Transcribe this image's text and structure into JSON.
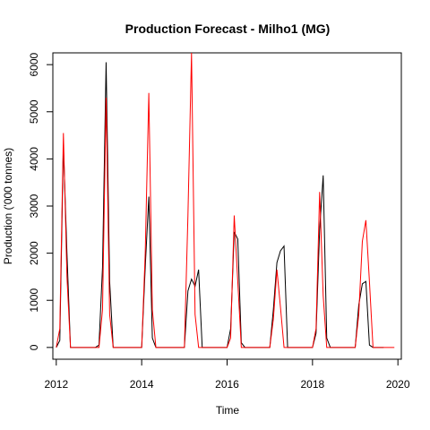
{
  "chart_data": {
    "type": "line",
    "title": "Production Forecast - Milho1 (MG)",
    "xlabel": "Time",
    "ylabel": "Production ('000 tonnes)",
    "xlim": [
      2011.92,
      2020.08
    ],
    "ylim": [
      -250,
      6250
    ],
    "x_ticks": [
      2012,
      2014,
      2016,
      2018,
      2020
    ],
    "y_ticks": [
      0,
      1000,
      2000,
      3000,
      4000,
      5000,
      6000
    ],
    "grid": false,
    "legend": "none",
    "series": [
      {
        "color": "#000000",
        "points": [
          [
            2012.0,
            0
          ],
          [
            2012.083,
            150
          ],
          [
            2012.167,
            4300
          ],
          [
            2012.25,
            2000
          ],
          [
            2012.333,
            0
          ],
          [
            2012.417,
            0
          ],
          [
            2012.5,
            0
          ],
          [
            2012.583,
            0
          ],
          [
            2012.667,
            0
          ],
          [
            2012.75,
            0
          ],
          [
            2012.833,
            0
          ],
          [
            2012.917,
            0
          ],
          [
            2013.0,
            50
          ],
          [
            2013.083,
            1700
          ],
          [
            2013.167,
            6050
          ],
          [
            2013.25,
            1400
          ],
          [
            2013.333,
            0
          ],
          [
            2013.417,
            0
          ],
          [
            2013.5,
            0
          ],
          [
            2013.583,
            0
          ],
          [
            2013.667,
            0
          ],
          [
            2013.75,
            0
          ],
          [
            2013.833,
            0
          ],
          [
            2013.917,
            0
          ],
          [
            2014.0,
            0
          ],
          [
            2014.083,
            1700
          ],
          [
            2014.167,
            3200
          ],
          [
            2014.25,
            200
          ],
          [
            2014.333,
            0
          ],
          [
            2014.417,
            0
          ],
          [
            2014.5,
            0
          ],
          [
            2014.583,
            0
          ],
          [
            2014.667,
            0
          ],
          [
            2014.75,
            0
          ],
          [
            2014.833,
            0
          ],
          [
            2014.917,
            0
          ],
          [
            2015.0,
            0
          ],
          [
            2015.083,
            1200
          ],
          [
            2015.167,
            1450
          ],
          [
            2015.25,
            1300
          ],
          [
            2015.333,
            1650
          ],
          [
            2015.417,
            0
          ],
          [
            2015.5,
            0
          ],
          [
            2015.583,
            0
          ],
          [
            2015.667,
            0
          ],
          [
            2015.75,
            0
          ],
          [
            2015.833,
            0
          ],
          [
            2015.917,
            0
          ],
          [
            2016.0,
            0
          ],
          [
            2016.083,
            400
          ],
          [
            2016.167,
            2450
          ],
          [
            2016.25,
            2300
          ],
          [
            2016.333,
            100
          ],
          [
            2016.417,
            0
          ],
          [
            2016.5,
            0
          ],
          [
            2016.583,
            0
          ],
          [
            2016.667,
            0
          ],
          [
            2016.75,
            0
          ],
          [
            2016.833,
            0
          ],
          [
            2016.917,
            0
          ],
          [
            2017.0,
            0
          ],
          [
            2017.083,
            800
          ],
          [
            2017.167,
            1800
          ],
          [
            2017.25,
            2050
          ],
          [
            2017.333,
            2150
          ],
          [
            2017.417,
            0
          ],
          [
            2017.5,
            0
          ],
          [
            2017.583,
            0
          ],
          [
            2017.667,
            0
          ],
          [
            2017.75,
            0
          ],
          [
            2017.833,
            0
          ],
          [
            2017.917,
            0
          ],
          [
            2018.0,
            0
          ],
          [
            2018.083,
            300
          ],
          [
            2018.167,
            2500
          ],
          [
            2018.25,
            3650
          ],
          [
            2018.333,
            200
          ],
          [
            2018.417,
            0
          ],
          [
            2018.5,
            0
          ],
          [
            2018.583,
            0
          ],
          [
            2018.667,
            0
          ],
          [
            2018.75,
            0
          ],
          [
            2018.833,
            0
          ],
          [
            2018.917,
            0
          ],
          [
            2019.0,
            0
          ],
          [
            2019.083,
            900
          ],
          [
            2019.167,
            1350
          ],
          [
            2019.25,
            1400
          ],
          [
            2019.333,
            50
          ],
          [
            2019.417,
            0
          ],
          [
            2019.5,
            0
          ],
          [
            2019.583,
            0
          ],
          [
            2019.667,
            0
          ]
        ]
      },
      {
        "color": "#ff0000",
        "points": [
          [
            2012.0,
            0
          ],
          [
            2012.083,
            400
          ],
          [
            2012.167,
            4550
          ],
          [
            2012.25,
            1500
          ],
          [
            2012.333,
            0
          ],
          [
            2012.417,
            0
          ],
          [
            2012.5,
            0
          ],
          [
            2012.583,
            0
          ],
          [
            2012.667,
            0
          ],
          [
            2012.75,
            0
          ],
          [
            2012.833,
            0
          ],
          [
            2012.917,
            0
          ],
          [
            2013.0,
            0
          ],
          [
            2013.083,
            800
          ],
          [
            2013.167,
            5300
          ],
          [
            2013.25,
            700
          ],
          [
            2013.333,
            0
          ],
          [
            2013.417,
            0
          ],
          [
            2013.5,
            0
          ],
          [
            2013.583,
            0
          ],
          [
            2013.667,
            0
          ],
          [
            2013.75,
            0
          ],
          [
            2013.833,
            0
          ],
          [
            2013.917,
            0
          ],
          [
            2014.0,
            0
          ],
          [
            2014.083,
            2000
          ],
          [
            2014.167,
            5400
          ],
          [
            2014.25,
            800
          ],
          [
            2014.333,
            0
          ],
          [
            2014.417,
            0
          ],
          [
            2014.5,
            0
          ],
          [
            2014.583,
            0
          ],
          [
            2014.667,
            0
          ],
          [
            2014.75,
            0
          ],
          [
            2014.833,
            0
          ],
          [
            2014.917,
            0
          ],
          [
            2015.0,
            0
          ],
          [
            2015.083,
            2800
          ],
          [
            2015.167,
            6250
          ],
          [
            2015.25,
            700
          ],
          [
            2015.333,
            0
          ],
          [
            2015.417,
            0
          ],
          [
            2015.5,
            0
          ],
          [
            2015.583,
            0
          ],
          [
            2015.667,
            0
          ],
          [
            2015.75,
            0
          ],
          [
            2015.833,
            0
          ],
          [
            2015.917,
            0
          ],
          [
            2016.0,
            0
          ],
          [
            2016.083,
            200
          ],
          [
            2016.167,
            2800
          ],
          [
            2016.25,
            1400
          ],
          [
            2016.333,
            0
          ],
          [
            2016.417,
            0
          ],
          [
            2016.5,
            0
          ],
          [
            2016.583,
            0
          ],
          [
            2016.667,
            0
          ],
          [
            2016.75,
            0
          ],
          [
            2016.833,
            0
          ],
          [
            2016.917,
            0
          ],
          [
            2017.0,
            0
          ],
          [
            2017.083,
            600
          ],
          [
            2017.167,
            1650
          ],
          [
            2017.25,
            850
          ],
          [
            2017.333,
            0
          ],
          [
            2017.417,
            0
          ],
          [
            2017.5,
            0
          ],
          [
            2017.583,
            0
          ],
          [
            2017.667,
            0
          ],
          [
            2017.75,
            0
          ],
          [
            2017.833,
            0
          ],
          [
            2017.917,
            0
          ],
          [
            2018.0,
            0
          ],
          [
            2018.083,
            400
          ],
          [
            2018.167,
            3300
          ],
          [
            2018.25,
            1100
          ],
          [
            2018.333,
            0
          ],
          [
            2018.417,
            0
          ],
          [
            2018.5,
            0
          ],
          [
            2018.583,
            0
          ],
          [
            2018.667,
            0
          ],
          [
            2018.75,
            0
          ],
          [
            2018.833,
            0
          ],
          [
            2018.917,
            0
          ],
          [
            2019.0,
            0
          ],
          [
            2019.083,
            700
          ],
          [
            2019.167,
            2250
          ],
          [
            2019.25,
            2700
          ],
          [
            2019.333,
            1400
          ],
          [
            2019.417,
            0
          ],
          [
            2019.5,
            0
          ],
          [
            2019.583,
            0
          ],
          [
            2019.667,
            0
          ],
          [
            2019.75,
            0
          ],
          [
            2019.833,
            0
          ],
          [
            2019.917,
            0
          ]
        ]
      }
    ]
  }
}
